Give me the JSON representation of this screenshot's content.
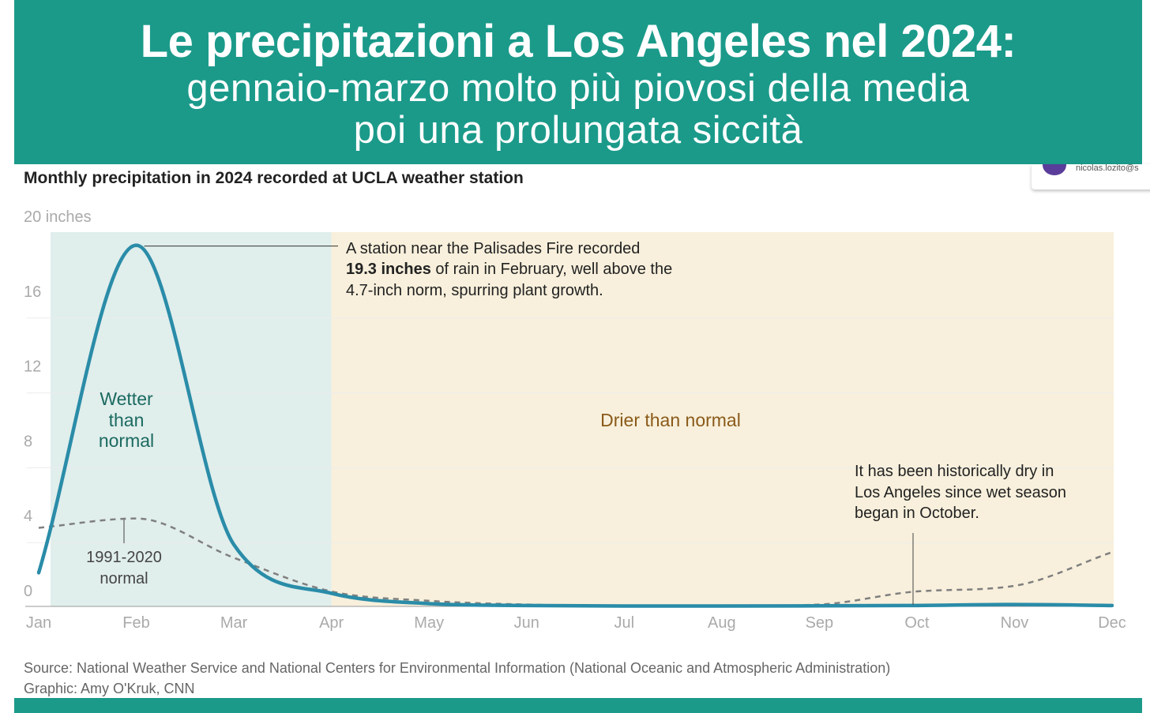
{
  "banner": {
    "title": "Le precipitazioni a Los Angeles nel 2024:",
    "subtitle_line1": "gennaio-marzo molto più piovosi della media",
    "subtitle_line2": "poi una prolungata siccità"
  },
  "overlay": {
    "email": "nicolas.lozito@s"
  },
  "colors": {
    "banner": "#1b9a8a",
    "wet_region": "#e0eeec",
    "dry_region": "#f8f0dc",
    "line_2024": "#2a8ca8",
    "normal_line": "#7f7f7f",
    "wet_label": "#1b6a60",
    "dry_label": "#8a5a1a"
  },
  "chart_data": {
    "type": "line",
    "title": "Monthly precipitation in 2024 recorded at UCLA weather station",
    "y_unit_label": "20 inches",
    "ylim": [
      0,
      20
    ],
    "y_ticks": [
      {
        "value": 0,
        "label": "0"
      },
      {
        "value": 4,
        "label": "4"
      },
      {
        "value": 8,
        "label": "8"
      },
      {
        "value": 12,
        "label": "12"
      },
      {
        "value": 16,
        "label": "16"
      },
      {
        "value": 20,
        "label": "20 inches"
      }
    ],
    "categories": [
      "Jan",
      "Feb",
      "Mar",
      "Apr",
      "May",
      "Jun",
      "Jul",
      "Aug",
      "Sep",
      "Oct",
      "Nov",
      "Dec"
    ],
    "series": [
      {
        "name": "2024",
        "style": "solid",
        "values": [
          1.8,
          19.3,
          3.3,
          0.7,
          0.15,
          0.05,
          0.02,
          0.02,
          0.03,
          0.05,
          0.1,
          0.05
        ]
      },
      {
        "name": "1991-2020 normal",
        "style": "dashed",
        "values": [
          4.2,
          4.7,
          2.6,
          0.8,
          0.3,
          0.1,
          0.02,
          0.02,
          0.1,
          0.8,
          1.1,
          2.9
        ]
      }
    ],
    "regions": [
      {
        "from": "Jan",
        "to": "Apr",
        "label_lines": [
          "Wetter",
          "than",
          "normal"
        ]
      },
      {
        "from": "Apr",
        "to": "Dec",
        "label": "Drier than normal"
      }
    ],
    "annotations": {
      "feb": {
        "line1": "A station near the Palisades Fire recorded",
        "bold": "19.3 inches",
        "line2_rest": " of rain in February, well above the",
        "line3": "4.7-inch norm, spurring plant growth."
      },
      "oct": {
        "line1": "It has been historically dry in",
        "line2": "Los Angeles since wet season",
        "line3": "began in October."
      },
      "normal_label": {
        "line1": "1991-2020",
        "line2": "normal"
      }
    }
  },
  "footer": {
    "source": "Source: National Weather Service and National Centers for Environmental Information (National Oceanic and Atmospheric Administration)",
    "graphic": "Graphic: Amy O'Kruk, CNN"
  }
}
